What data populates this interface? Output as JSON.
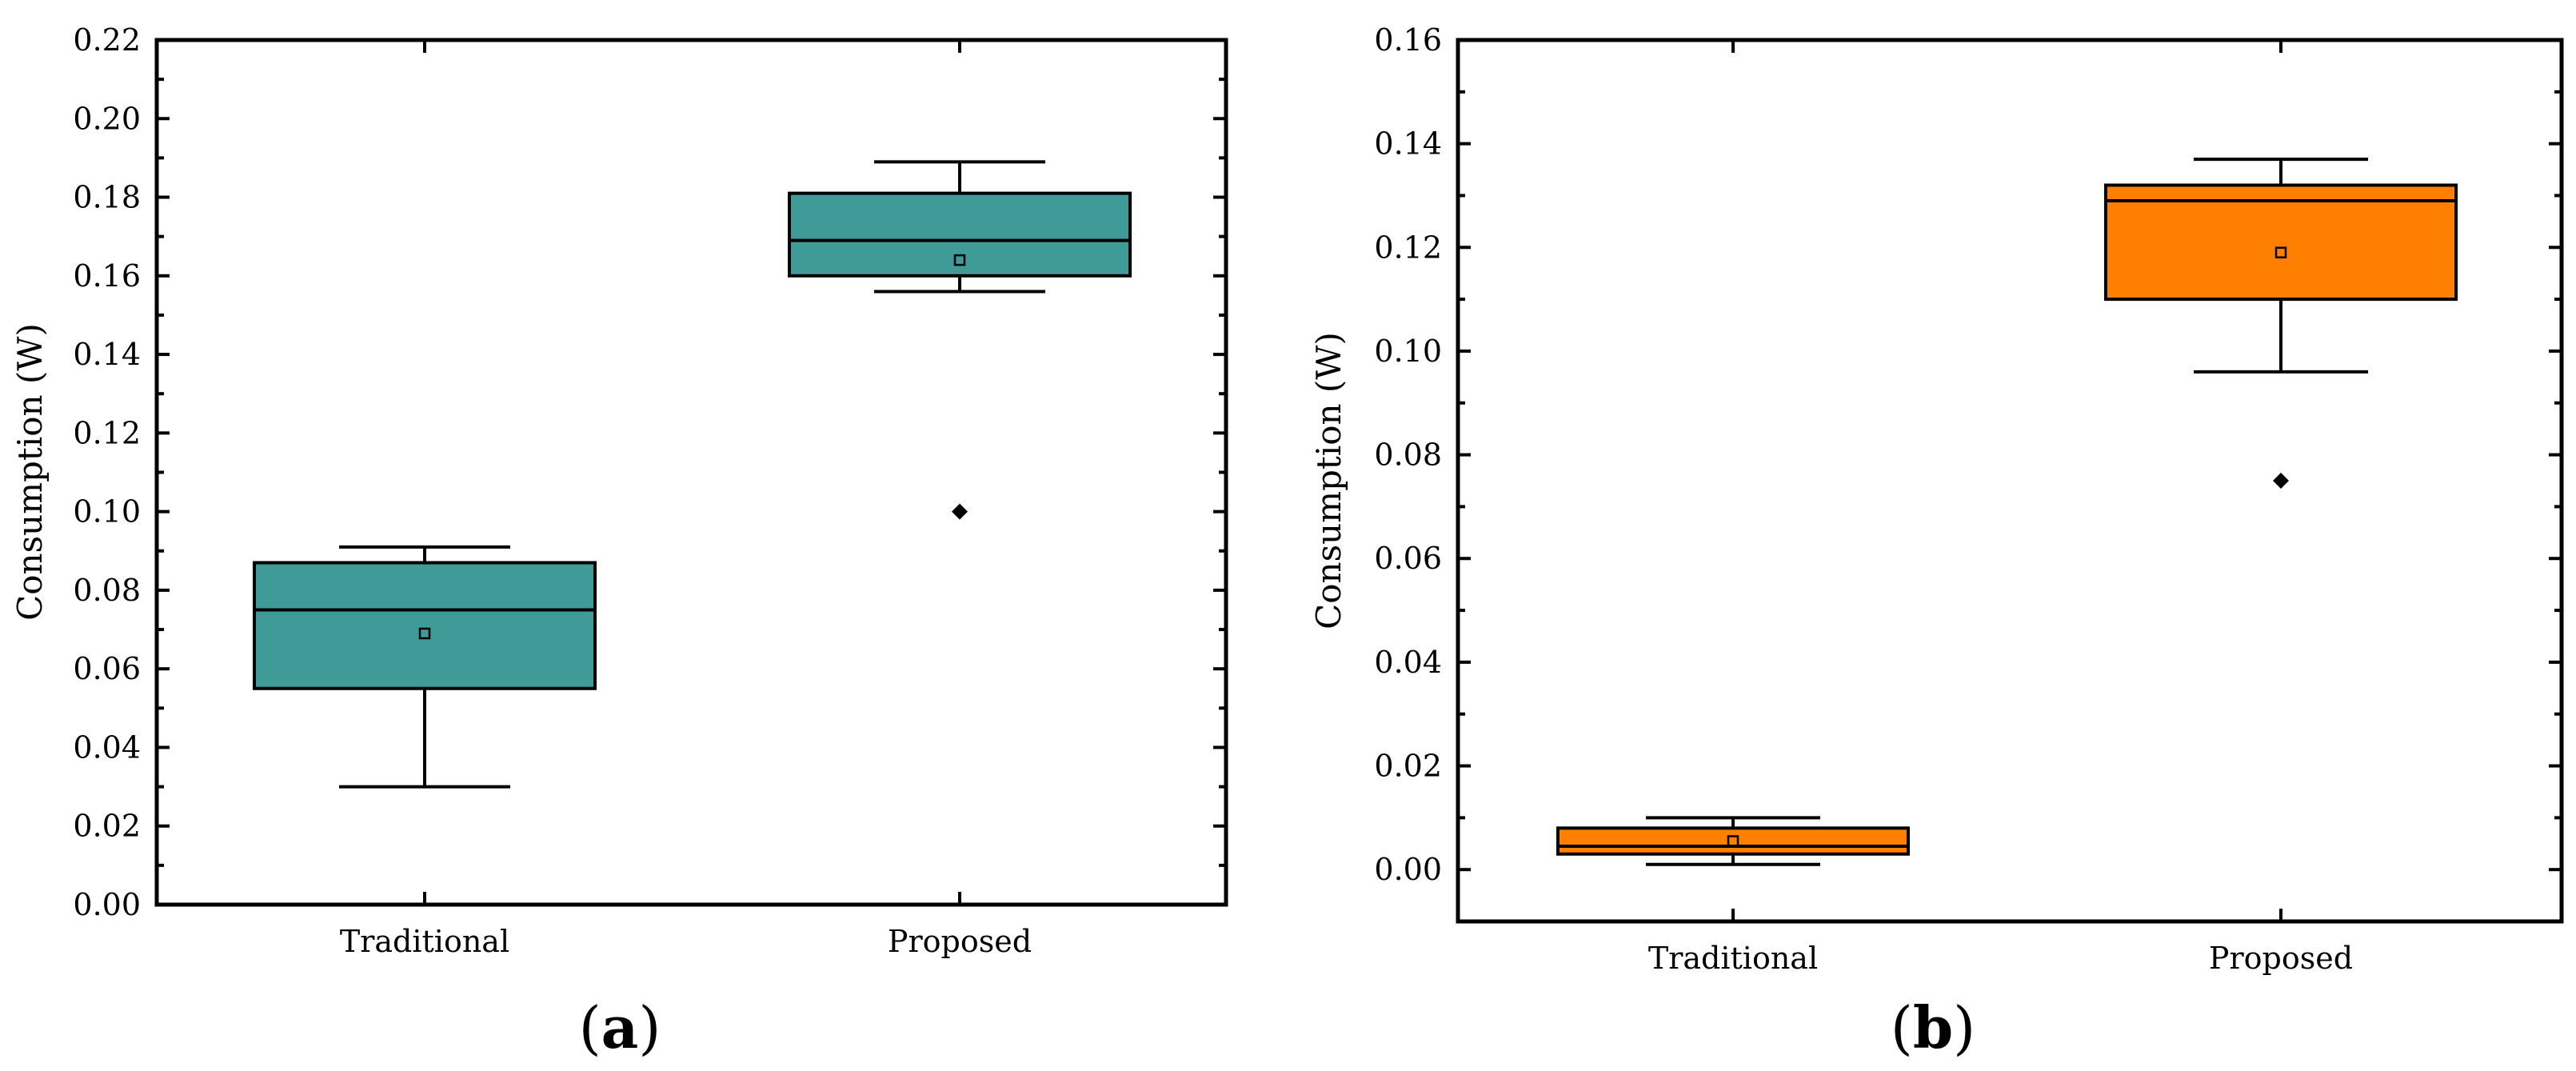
{
  "chart_data": [
    {
      "type": "box",
      "panel_label": "a",
      "ylabel": "Consumption (W)",
      "xlabel": "",
      "ylim": [
        0.0,
        0.22
      ],
      "yticks": [
        "0.00",
        "0.02",
        "0.04",
        "0.06",
        "0.08",
        "0.10",
        "0.12",
        "0.14",
        "0.16",
        "0.18",
        "0.20",
        "0.22"
      ],
      "categories": [
        "Traditional",
        "Proposed"
      ],
      "color": "#3f9b98",
      "grid": false,
      "boxes": [
        {
          "category": "Traditional",
          "whisker_low": 0.03,
          "q1": 0.055,
          "median": 0.075,
          "q3": 0.087,
          "whisker_high": 0.091,
          "mean": 0.069,
          "outliers": []
        },
        {
          "category": "Proposed",
          "whisker_low": 0.156,
          "q1": 0.16,
          "median": 0.169,
          "q3": 0.181,
          "whisker_high": 0.189,
          "mean": 0.164,
          "outliers": [
            0.1
          ]
        }
      ]
    },
    {
      "type": "box",
      "panel_label": "b",
      "ylabel": "Consumption (W)",
      "xlabel": "",
      "ylim": [
        -0.01,
        0.16
      ],
      "yticks": [
        "0.00",
        "0.02",
        "0.04",
        "0.06",
        "0.08",
        "0.10",
        "0.12",
        "0.14",
        "0.16"
      ],
      "categories": [
        "Traditional",
        "Proposed"
      ],
      "color": "#ff8000",
      "grid": false,
      "boxes": [
        {
          "category": "Traditional",
          "whisker_low": 0.001,
          "q1": 0.003,
          "median": 0.0045,
          "q3": 0.008,
          "whisker_high": 0.01,
          "mean": 0.0055,
          "outliers": []
        },
        {
          "category": "Proposed",
          "whisker_low": 0.096,
          "q1": 0.11,
          "median": 0.129,
          "q3": 0.132,
          "whisker_high": 0.137,
          "mean": 0.119,
          "outliers": [
            0.075
          ]
        }
      ]
    }
  ]
}
